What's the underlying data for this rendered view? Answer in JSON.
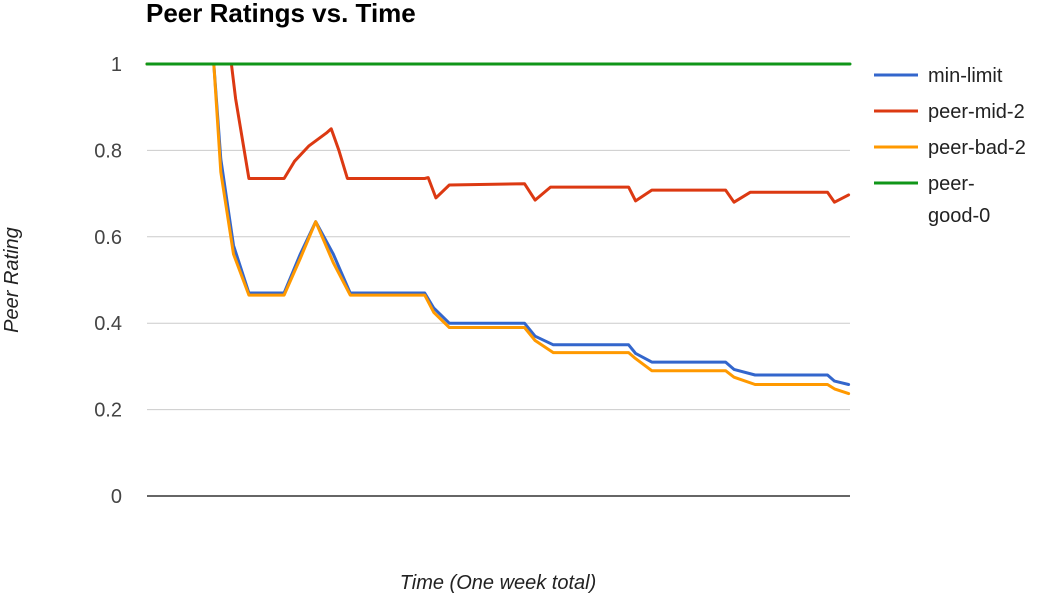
{
  "chart_data": {
    "type": "line",
    "title": "Peer Ratings vs. Time",
    "xlabel": "Time (One week total)",
    "ylabel": "Peer Rating",
    "ylim": [
      0,
      1
    ],
    "yticks": [
      "0",
      "0.2",
      "0.4",
      "0.6",
      "0.8",
      "1"
    ],
    "xlim": [
      0,
      100
    ],
    "grid": true,
    "legend_position": "right",
    "series": [
      {
        "name": "min-limit",
        "color": "#3366cc",
        "points": [
          [
            0,
            1
          ],
          [
            9.5,
            1
          ],
          [
            10.5,
            0.78
          ],
          [
            12.3,
            0.58
          ],
          [
            14.5,
            0.47
          ],
          [
            19.5,
            0.47
          ],
          [
            21.8,
            0.56
          ],
          [
            24,
            0.635
          ],
          [
            26.5,
            0.56
          ],
          [
            28.9,
            0.47
          ],
          [
            39.5,
            0.47
          ],
          [
            40.8,
            0.435
          ],
          [
            43,
            0.4
          ],
          [
            53.7,
            0.4
          ],
          [
            55.2,
            0.37
          ],
          [
            57.8,
            0.35
          ],
          [
            68.5,
            0.35
          ],
          [
            69.5,
            0.33
          ],
          [
            71.8,
            0.31
          ],
          [
            82.3,
            0.31
          ],
          [
            83.5,
            0.293
          ],
          [
            86.5,
            0.28
          ],
          [
            96.8,
            0.28
          ],
          [
            97.8,
            0.266
          ],
          [
            99.8,
            0.258
          ]
        ]
      },
      {
        "name": "peer-mid-2",
        "color": "#dc3912",
        "points": [
          [
            0,
            1
          ],
          [
            12,
            1
          ],
          [
            12.6,
            0.92
          ],
          [
            14.5,
            0.735
          ],
          [
            19.5,
            0.735
          ],
          [
            21,
            0.775
          ],
          [
            23,
            0.81
          ],
          [
            25.5,
            0.84
          ],
          [
            26.2,
            0.85
          ],
          [
            27.3,
            0.8
          ],
          [
            28.5,
            0.735
          ],
          [
            39.5,
            0.735
          ],
          [
            40,
            0.737
          ],
          [
            41.1,
            0.69
          ],
          [
            43,
            0.72
          ],
          [
            53.7,
            0.723
          ],
          [
            55.2,
            0.685
          ],
          [
            57.4,
            0.715
          ],
          [
            68.5,
            0.715
          ],
          [
            69.5,
            0.683
          ],
          [
            71.8,
            0.708
          ],
          [
            82.3,
            0.708
          ],
          [
            83.5,
            0.68
          ],
          [
            85.8,
            0.703
          ],
          [
            96.8,
            0.703
          ],
          [
            97.8,
            0.68
          ],
          [
            99.8,
            0.697
          ]
        ]
      },
      {
        "name": "peer-bad-2",
        "color": "#ff9900",
        "points": [
          [
            0,
            1
          ],
          [
            9.5,
            1
          ],
          [
            10.5,
            0.75
          ],
          [
            12.3,
            0.56
          ],
          [
            14.5,
            0.465
          ],
          [
            19.5,
            0.465
          ],
          [
            21.8,
            0.55
          ],
          [
            24,
            0.635
          ],
          [
            26.5,
            0.54
          ],
          [
            28.9,
            0.465
          ],
          [
            39.5,
            0.465
          ],
          [
            40.8,
            0.425
          ],
          [
            43,
            0.39
          ],
          [
            53.7,
            0.39
          ],
          [
            55.2,
            0.36
          ],
          [
            57.8,
            0.332
          ],
          [
            68.5,
            0.332
          ],
          [
            69.5,
            0.318
          ],
          [
            71.8,
            0.29
          ],
          [
            82.3,
            0.29
          ],
          [
            83.5,
            0.275
          ],
          [
            86.5,
            0.258
          ],
          [
            96.8,
            0.258
          ],
          [
            97.8,
            0.248
          ],
          [
            99.8,
            0.237
          ]
        ]
      },
      {
        "name": "peer-good-0",
        "name_lines": [
          "peer-",
          "good-0"
        ],
        "color": "#109618",
        "points": [
          [
            0,
            1
          ],
          [
            100,
            1
          ]
        ]
      }
    ]
  }
}
